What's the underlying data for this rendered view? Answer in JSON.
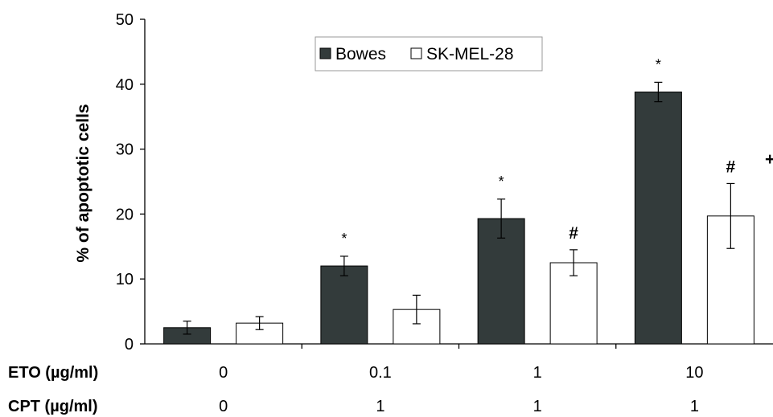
{
  "chart_data": {
    "type": "bar",
    "ylabel": "% of apoptotic cells",
    "ylim": [
      0,
      50
    ],
    "yticks": [
      "0",
      "10",
      "20",
      "30",
      "40",
      "50"
    ],
    "grid": false,
    "legend_position": "top-center",
    "categories": [
      "0/0",
      "0.1/1",
      "1/1",
      "10/1"
    ],
    "condition_rows": [
      {
        "label": "ETO (µg/ml)",
        "values": [
          "0",
          "0.1",
          "1",
          "10"
        ]
      },
      {
        "label": "CPT (µg/ml)",
        "values": [
          "0",
          "1",
          "1",
          "1"
        ]
      }
    ],
    "series": [
      {
        "name": "Bowes",
        "color": "#333b3b",
        "values": [
          2.5,
          12.0,
          19.3,
          38.8
        ],
        "errors": [
          1.0,
          1.5,
          3.0,
          1.5
        ],
        "markers": [
          "",
          "*",
          "*",
          "*"
        ]
      },
      {
        "name": "SK-MEL-28",
        "color": "#ffffff",
        "values": [
          3.2,
          5.3,
          12.5,
          19.7
        ],
        "errors": [
          1.0,
          2.2,
          2.0,
          5.0
        ],
        "markers": [
          "",
          "",
          "#",
          "#"
        ]
      }
    ],
    "extra_annotations": [
      "+"
    ]
  }
}
